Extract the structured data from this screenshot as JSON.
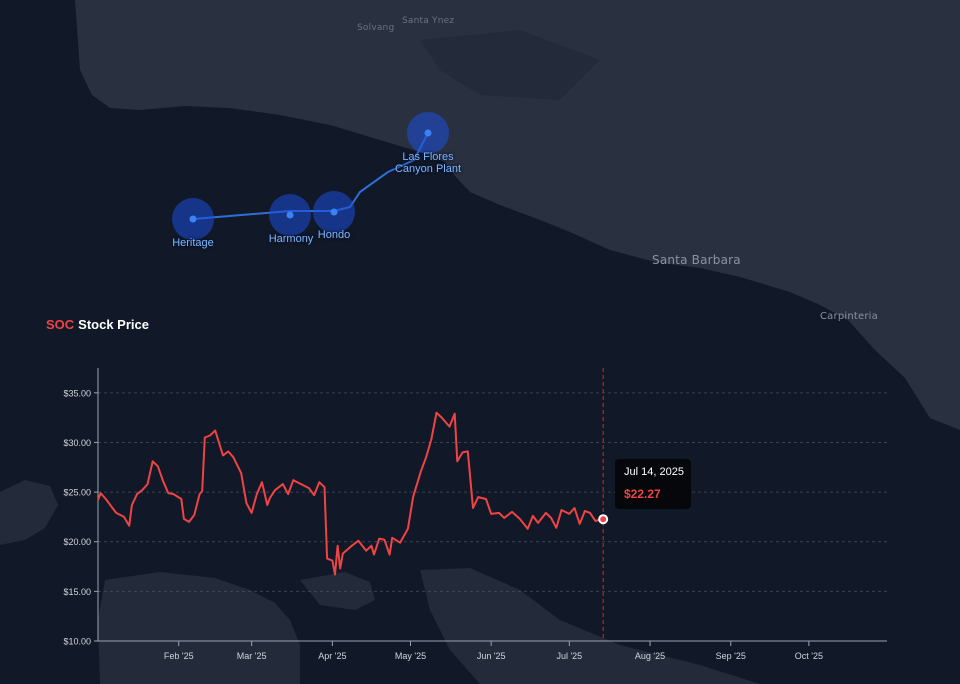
{
  "map": {
    "labels": {
      "santa_barbara": "Santa Barbara",
      "carpinteria": "Carpinteria",
      "top_left": "Solvang",
      "top_right": "Santa Ynez"
    },
    "sites": [
      {
        "name": "Heritage"
      },
      {
        "name": "Harmony"
      },
      {
        "name": "Hondo"
      },
      {
        "name_line1": "Las Flores",
        "name_line2": "Canyon Plant"
      }
    ],
    "colors": {
      "land": "#2a3140",
      "water": "#111827",
      "pipeline": "#2f6ed8",
      "site_marker": "#1d4ed8"
    }
  },
  "chart_title": {
    "ticker": "SOC",
    "text": "Stock Price"
  },
  "tooltip": {
    "date": "Jul 14, 2025",
    "value": "$22.27"
  },
  "colors": {
    "line": "#ef4444",
    "ticker": "#ef4444",
    "axis": "#9ca3af",
    "grid": "#4b5563"
  },
  "chart_data": {
    "type": "line",
    "title": "SOC Stock Price",
    "xlabel": "",
    "ylabel": "",
    "ylim": [
      10,
      37.5
    ],
    "xlim": [
      "2025-01-01",
      "2025-10-31"
    ],
    "yticks": [
      "$10.00",
      "$15.00",
      "$20.00",
      "$25.00",
      "$30.00",
      "$35.00"
    ],
    "xticks": [
      "Feb '25",
      "Mar '25",
      "Apr '25",
      "May '25",
      "Jun '25",
      "Jul '25",
      "Aug '25",
      "Sep '25",
      "Oct '25"
    ],
    "grid": "horizontal dashed",
    "highlight": {
      "date": "2025-07-14",
      "value": 22.27
    },
    "series": [
      {
        "name": "SOC",
        "points": [
          [
            "2025-01-01",
            24.2
          ],
          [
            "2025-01-02",
            24.9
          ],
          [
            "2025-01-04",
            24.3
          ],
          [
            "2025-01-06",
            23.6
          ],
          [
            "2025-01-08",
            22.9
          ],
          [
            "2025-01-11",
            22.5
          ],
          [
            "2025-01-13",
            21.6
          ],
          [
            "2025-01-14",
            23.7
          ],
          [
            "2025-01-16",
            24.8
          ],
          [
            "2025-01-18",
            25.2
          ],
          [
            "2025-01-20",
            25.8
          ],
          [
            "2025-01-22",
            28.1
          ],
          [
            "2025-01-24",
            27.6
          ],
          [
            "2025-01-26",
            26.1
          ],
          [
            "2025-01-28",
            24.9
          ],
          [
            "2025-01-30",
            24.8
          ],
          [
            "2025-02-02",
            24.3
          ],
          [
            "2025-02-03",
            22.3
          ],
          [
            "2025-02-05",
            22.0
          ],
          [
            "2025-02-07",
            22.7
          ],
          [
            "2025-02-09",
            24.8
          ],
          [
            "2025-02-10",
            25.1
          ],
          [
            "2025-02-11",
            30.5
          ],
          [
            "2025-02-13",
            30.7
          ],
          [
            "2025-02-15",
            31.2
          ],
          [
            "2025-02-18",
            28.7
          ],
          [
            "2025-02-20",
            29.1
          ],
          [
            "2025-02-22",
            28.5
          ],
          [
            "2025-02-25",
            26.9
          ],
          [
            "2025-02-27",
            23.9
          ],
          [
            "2025-03-01",
            22.9
          ],
          [
            "2025-03-03",
            24.8
          ],
          [
            "2025-03-05",
            26.0
          ],
          [
            "2025-03-07",
            23.7
          ],
          [
            "2025-03-08",
            24.4
          ],
          [
            "2025-03-10",
            25.2
          ],
          [
            "2025-03-13",
            25.8
          ],
          [
            "2025-03-15",
            24.8
          ],
          [
            "2025-03-17",
            26.2
          ],
          [
            "2025-03-20",
            25.8
          ],
          [
            "2025-03-23",
            25.4
          ],
          [
            "2025-03-25",
            24.7
          ],
          [
            "2025-03-27",
            26.0
          ],
          [
            "2025-03-29",
            25.5
          ],
          [
            "2025-03-30",
            18.3
          ],
          [
            "2025-04-01",
            18.1
          ],
          [
            "2025-04-02",
            16.7
          ],
          [
            "2025-04-03",
            19.6
          ],
          [
            "2025-04-04",
            17.3
          ],
          [
            "2025-04-05",
            18.8
          ],
          [
            "2025-04-08",
            19.5
          ],
          [
            "2025-04-11",
            20.1
          ],
          [
            "2025-04-14",
            19.1
          ],
          [
            "2025-04-16",
            19.6
          ],
          [
            "2025-04-17",
            18.7
          ],
          [
            "2025-04-19",
            20.3
          ],
          [
            "2025-04-21",
            20.2
          ],
          [
            "2025-04-23",
            18.7
          ],
          [
            "2025-04-24",
            20.4
          ],
          [
            "2025-04-27",
            19.9
          ],
          [
            "2025-04-30",
            21.3
          ],
          [
            "2025-05-02",
            24.5
          ],
          [
            "2025-05-05",
            27.1
          ],
          [
            "2025-05-07",
            28.5
          ],
          [
            "2025-05-09",
            30.3
          ],
          [
            "2025-05-11",
            33.0
          ],
          [
            "2025-05-13",
            32.5
          ],
          [
            "2025-05-16",
            31.6
          ],
          [
            "2025-05-18",
            32.9
          ],
          [
            "2025-05-19",
            28.1
          ],
          [
            "2025-05-21",
            29.0
          ],
          [
            "2025-05-23",
            29.1
          ],
          [
            "2025-05-25",
            23.4
          ],
          [
            "2025-05-27",
            24.5
          ],
          [
            "2025-05-30",
            24.3
          ],
          [
            "2025-06-01",
            22.8
          ],
          [
            "2025-06-04",
            22.9
          ],
          [
            "2025-06-06",
            22.4
          ],
          [
            "2025-06-09",
            23.0
          ],
          [
            "2025-06-12",
            22.3
          ],
          [
            "2025-06-15",
            21.3
          ],
          [
            "2025-06-17",
            22.6
          ],
          [
            "2025-06-19",
            21.9
          ],
          [
            "2025-06-22",
            22.9
          ],
          [
            "2025-06-24",
            22.4
          ],
          [
            "2025-06-26",
            21.4
          ],
          [
            "2025-06-28",
            23.2
          ],
          [
            "2025-07-01",
            22.8
          ],
          [
            "2025-07-03",
            23.4
          ],
          [
            "2025-07-05",
            21.8
          ],
          [
            "2025-07-07",
            23.1
          ],
          [
            "2025-07-09",
            22.9
          ],
          [
            "2025-07-11",
            22.1
          ],
          [
            "2025-07-14",
            22.27
          ]
        ]
      }
    ]
  }
}
